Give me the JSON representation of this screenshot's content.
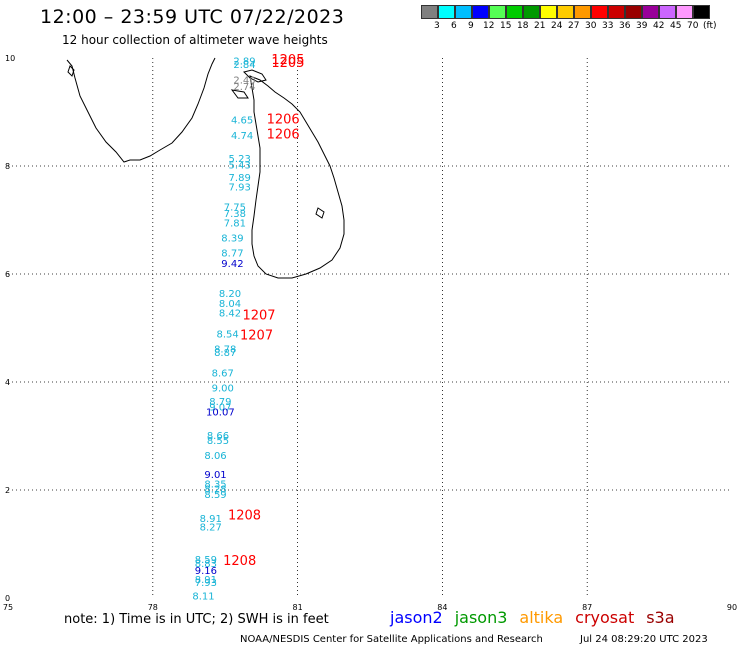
{
  "header": {
    "title": "12:00 – 23:59 UTC 07/22/2023",
    "subtitle": "12 hour collection of altimeter wave heights"
  },
  "colorbar": {
    "unit_label": "(ft)",
    "labels": [
      "3",
      "6",
      "9",
      "12",
      "15",
      "18",
      "21",
      "24",
      "27",
      "30",
      "33",
      "36",
      "39",
      "42",
      "45",
      "70"
    ],
    "colors": [
      "#808080",
      "#00ffff",
      "#00bfff",
      "#0000ff",
      "#55ff55",
      "#00cc00",
      "#009900",
      "#ffff00",
      "#ffcc00",
      "#ff9900",
      "#ff0000",
      "#cc0000",
      "#990000",
      "#990099",
      "#cc66ff",
      "#ff99ff",
      "#000000"
    ]
  },
  "axes": {
    "x_ticks": [
      "75",
      "78",
      "81",
      "84",
      "87",
      "90"
    ],
    "y_ticks": [
      "10",
      "8",
      "6",
      "4",
      "2",
      "0"
    ]
  },
  "chart_data": {
    "type": "scatter",
    "xlim": [
      75,
      90
    ],
    "ylim": [
      0,
      10
    ],
    "points": [
      {
        "lon": 79.9,
        "lat": 9.95,
        "label": "2.89",
        "color": "#19b4d6"
      },
      {
        "lon": 79.9,
        "lat": 9.89,
        "label": "2.84",
        "color": "#19b4d6"
      },
      {
        "lon": 79.9,
        "lat": 9.6,
        "label": "2.40",
        "color": "#808080"
      },
      {
        "lon": 79.9,
        "lat": 9.48,
        "label": "2.74",
        "color": "#808080"
      },
      {
        "lon": 79.85,
        "lat": 8.86,
        "label": "4.65",
        "color": "#19b4d6"
      },
      {
        "lon": 79.85,
        "lat": 8.57,
        "label": "4.74",
        "color": "#19b4d6"
      },
      {
        "lon": 79.8,
        "lat": 8.15,
        "label": "5.23",
        "color": "#19b4d6"
      },
      {
        "lon": 79.8,
        "lat": 8.03,
        "label": "5.43",
        "color": "#19b4d6"
      },
      {
        "lon": 79.8,
        "lat": 7.8,
        "label": "7.89",
        "color": "#19b4d6"
      },
      {
        "lon": 79.8,
        "lat": 7.62,
        "label": "7.93",
        "color": "#19b4d6"
      },
      {
        "lon": 79.7,
        "lat": 7.25,
        "label": "7.75",
        "color": "#19b4d6"
      },
      {
        "lon": 79.7,
        "lat": 7.13,
        "label": "7.38",
        "color": "#19b4d6"
      },
      {
        "lon": 79.7,
        "lat": 6.95,
        "label": "7.81",
        "color": "#19b4d6"
      },
      {
        "lon": 79.65,
        "lat": 6.68,
        "label": "8.39",
        "color": "#19b4d6"
      },
      {
        "lon": 79.65,
        "lat": 6.4,
        "label": "8.77",
        "color": "#19b4d6"
      },
      {
        "lon": 79.65,
        "lat": 6.2,
        "label": "9.42",
        "color": "#0000cc"
      },
      {
        "lon": 79.6,
        "lat": 5.65,
        "label": "8.20",
        "color": "#19b4d6"
      },
      {
        "lon": 79.6,
        "lat": 5.46,
        "label": "8.04",
        "color": "#19b4d6"
      },
      {
        "lon": 79.6,
        "lat": 5.29,
        "label": "8.42",
        "color": "#19b4d6"
      },
      {
        "lon": 79.55,
        "lat": 4.9,
        "label": "8.54",
        "color": "#19b4d6"
      },
      {
        "lon": 79.5,
        "lat": 4.62,
        "label": "8.78",
        "color": "#19b4d6"
      },
      {
        "lon": 79.5,
        "lat": 4.56,
        "label": "8.87",
        "color": "#19b4d6"
      },
      {
        "lon": 79.45,
        "lat": 4.18,
        "label": "8.67",
        "color": "#19b4d6"
      },
      {
        "lon": 79.45,
        "lat": 3.9,
        "label": "9.00",
        "color": "#19b4d6"
      },
      {
        "lon": 79.4,
        "lat": 3.65,
        "label": "8.79",
        "color": "#19b4d6"
      },
      {
        "lon": 79.4,
        "lat": 3.55,
        "label": "9.07",
        "color": "#19b4d6"
      },
      {
        "lon": 79.4,
        "lat": 3.45,
        "label": "10.07",
        "color": "#0000cc"
      },
      {
        "lon": 79.35,
        "lat": 3.02,
        "label": "8.66",
        "color": "#19b4d6"
      },
      {
        "lon": 79.35,
        "lat": 2.93,
        "label": "8.55",
        "color": "#19b4d6"
      },
      {
        "lon": 79.3,
        "lat": 2.65,
        "label": "8.06",
        "color": "#19b4d6"
      },
      {
        "lon": 79.3,
        "lat": 2.3,
        "label": "9.01",
        "color": "#0000cc"
      },
      {
        "lon": 79.3,
        "lat": 2.12,
        "label": "8.35",
        "color": "#19b4d6"
      },
      {
        "lon": 79.3,
        "lat": 2.03,
        "label": "8.28",
        "color": "#19b4d6"
      },
      {
        "lon": 79.3,
        "lat": 1.93,
        "label": "8.59",
        "color": "#19b4d6"
      },
      {
        "lon": 79.2,
        "lat": 1.48,
        "label": "8.91",
        "color": "#19b4d6"
      },
      {
        "lon": 79.2,
        "lat": 1.32,
        "label": "8.27",
        "color": "#19b4d6"
      },
      {
        "lon": 79.1,
        "lat": 0.72,
        "label": "8.59",
        "color": "#19b4d6"
      },
      {
        "lon": 79.1,
        "lat": 0.65,
        "label": "8.83",
        "color": "#19b4d6"
      },
      {
        "lon": 79.1,
        "lat": 0.52,
        "label": "9.16",
        "color": "#0000cc"
      },
      {
        "lon": 79.1,
        "lat": 0.35,
        "label": "8.91",
        "color": "#19b4d6"
      },
      {
        "lon": 79.1,
        "lat": 0.3,
        "label": "7.93",
        "color": "#19b4d6"
      },
      {
        "lon": 79.05,
        "lat": 0.05,
        "label": "8.11",
        "color": "#19b4d6"
      }
    ],
    "time_labels": [
      {
        "lon": 80.8,
        "lat": 9.98,
        "label": "1205"
      },
      {
        "lon": 80.8,
        "lat": 9.93,
        "label": "1205"
      },
      {
        "lon": 80.7,
        "lat": 8.88,
        "label": "1206"
      },
      {
        "lon": 80.7,
        "lat": 8.6,
        "label": "1206"
      },
      {
        "lon": 80.2,
        "lat": 5.25,
        "label": "1207"
      },
      {
        "lon": 80.15,
        "lat": 4.88,
        "label": "1207"
      },
      {
        "lon": 79.9,
        "lat": 1.55,
        "label": "1208"
      },
      {
        "lon": 79.8,
        "lat": 0.7,
        "label": "1208"
      }
    ]
  },
  "footer": {
    "note": "note: 1) Time is in UTC; 2) SWH is in feet",
    "legend": [
      {
        "name": "jason2",
        "color": "#0000ff"
      },
      {
        "name": "jason3",
        "color": "#009900"
      },
      {
        "name": "altika",
        "color": "#ff9900"
      },
      {
        "name": "cryosat",
        "color": "#cc0000"
      },
      {
        "name": "s3a",
        "color": "#990000"
      }
    ],
    "credit": "NOAA/NESDIS Center for Satellite Applications and Research",
    "date": "Jul 24 08:29:20 UTC 2023"
  }
}
